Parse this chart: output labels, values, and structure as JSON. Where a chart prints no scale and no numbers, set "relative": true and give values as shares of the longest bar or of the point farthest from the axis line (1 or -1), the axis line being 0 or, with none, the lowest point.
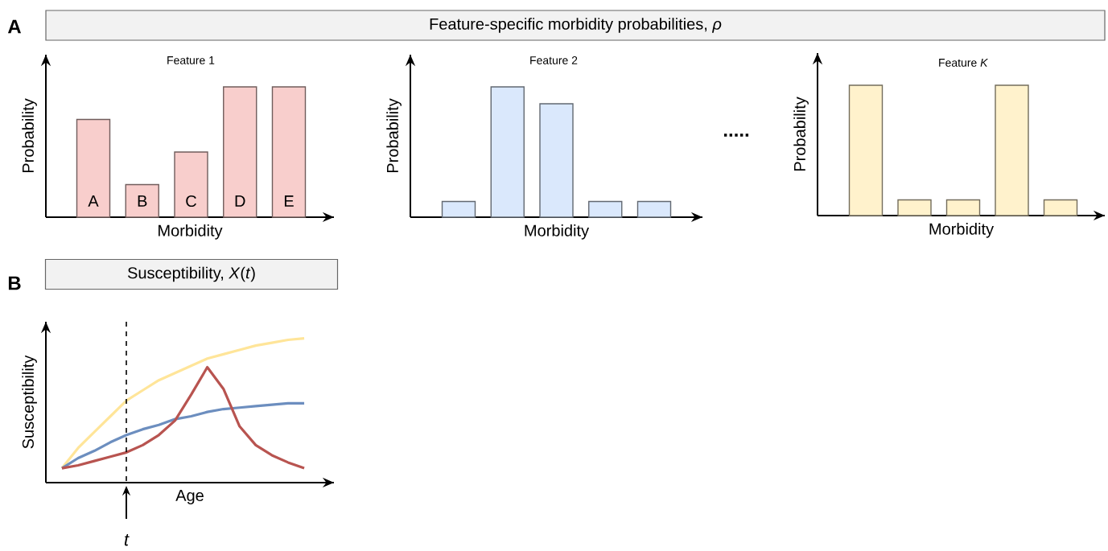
{
  "chart_data": [
    {
      "type": "bar",
      "title": "Feature 1",
      "xlabel": "Morbidity",
      "ylabel": "Probability",
      "categories": [
        "A",
        "B",
        "C",
        "D",
        "E"
      ],
      "values": [
        0.75,
        0.25,
        0.5,
        1,
        1
      ],
      "color": "#f8cecc",
      "relative": true,
      "annotations": [
        "A",
        "Feature-specific morbidity probabilities, *ρ*"
      ]
    },
    {
      "type": "bar",
      "title": "Feature 2",
      "xlabel": "Morbidity",
      "ylabel": "Probability",
      "categories": [
        null,
        null,
        null,
        null,
        null
      ],
      "values": [
        0.12,
        1,
        0.87,
        0.12,
        0.12
      ],
      "color": "#dae8fc",
      "relative": true,
      "annotations": [
        "....."
      ]
    },
    {
      "type": "bar",
      "title": "Feature *K*",
      "xlabel": "Morbidity",
      "ylabel": "Probability",
      "categories": [
        null,
        null,
        null,
        null,
        null
      ],
      "values": [
        1,
        0.12,
        0.12,
        1,
        0.12
      ],
      "color": "#fff2cc",
      "relative": true
    },
    {
      "type": "line",
      "title": "Susceptibility, *X*(*t*)",
      "xlabel": "Age",
      "ylabel": "Susceptibility",
      "categories": [
        null,
        null,
        null,
        null,
        null,
        null,
        null,
        null,
        null,
        null,
        null,
        null,
        null,
        null,
        null,
        null
      ],
      "relative": true,
      "series": [
        {
          "color": "#ffe599",
          "values": [
            0.1,
            0.24,
            0.35,
            0.46,
            0.57,
            0.64,
            0.71,
            0.76,
            0.81,
            0.86,
            0.89,
            0.92,
            0.95,
            0.97,
            0.99,
            1.0
          ]
        },
        {
          "color": "#6c8ebf",
          "values": [
            0.1,
            0.17,
            0.22,
            0.28,
            0.33,
            0.37,
            0.4,
            0.44,
            0.46,
            0.49,
            0.51,
            0.52,
            0.53,
            0.54,
            0.55,
            0.55
          ]
        },
        {
          "color": "#b85450",
          "values": [
            0.1,
            0.12,
            0.15,
            0.18,
            0.21,
            0.26,
            0.33,
            0.43,
            0.61,
            0.8,
            0.65,
            0.39,
            0.26,
            0.19,
            0.14,
            0.1
          ]
        }
      ],
      "annotations": [
        "B",
        "t"
      ]
    }
  ]
}
